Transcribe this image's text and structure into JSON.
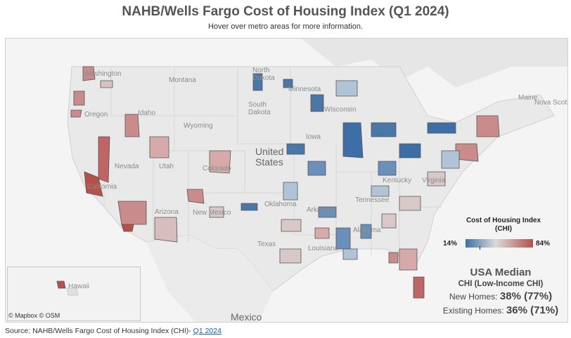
{
  "header": {
    "title": "NAHB/Wells Fargo Cost of Housing Index (Q1 2024)",
    "subtitle": "Hover over metro areas for more information."
  },
  "map": {
    "labels": {
      "washington": "Washington",
      "montana": "Montana",
      "north": "North",
      "dakota_n": "Dakota",
      "minnesota": "Minnesota",
      "oregon": "Oregon",
      "idaho": "Idaho",
      "south": "South",
      "dakota_s": "Dakota",
      "wisconsin": "Wisconsin",
      "wyoming": "Wyoming",
      "iowa": "Iowa",
      "united": "United",
      "states": "States",
      "nevada": "Nevada",
      "utah": "Utah",
      "colorado": "Colorado",
      "california": "California",
      "arizona": "Arizona",
      "new_mexico": "New Mexico",
      "oklahoma": "Oklahoma",
      "arkansas": "Arkansas",
      "tennessee": "Tennessee",
      "kentucky": "Kentucky",
      "virginia": "Virginia",
      "texas": "Texas",
      "louisiana": "Louisiana",
      "alabama": "Alabama",
      "maine": "Maine",
      "nova_scotia": "Nova Scoti",
      "mexico": "Mexico",
      "hawaii": "Hawaii"
    },
    "attribution": "© Mapbox  © OSM"
  },
  "legend": {
    "title": "Cost of Housing Index",
    "subtitle": "(CHI)",
    "min": "14%",
    "max": "84%",
    "color_low": "#3d6fa6",
    "color_mid": "#dadada",
    "color_high": "#b5504a"
  },
  "usa_median": {
    "title": "USA Median",
    "subtitle": "CHI (Low-Income CHI)",
    "new_homes_label": "New Homes: ",
    "new_homes_value": "38% (77%)",
    "existing_homes_label": "Existing Homes: ",
    "existing_homes_value": "36% (71%)"
  },
  "footer": {
    "source_text": "Source: NAHB/Wells Fargo Cost of Housing Index (CHI)- ",
    "source_link": "Q1 2024"
  }
}
